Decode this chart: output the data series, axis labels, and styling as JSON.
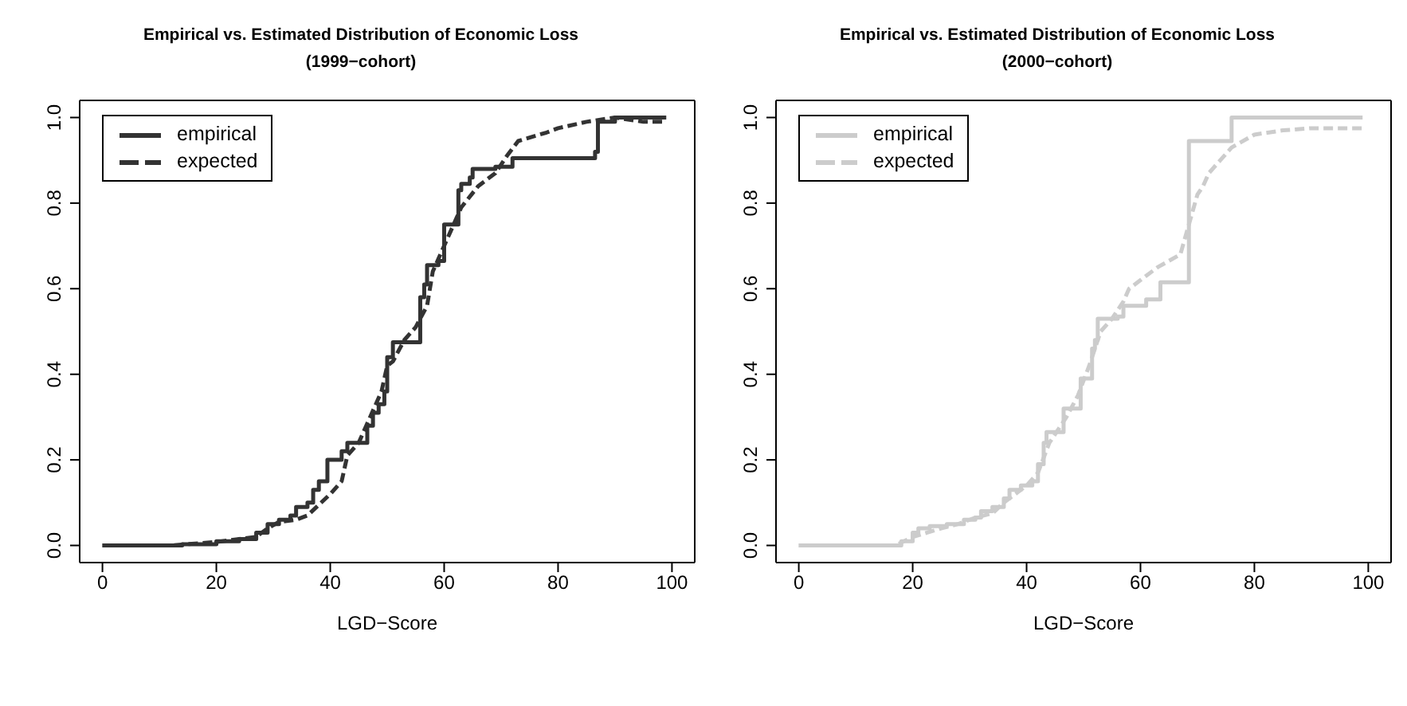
{
  "chart_data": [
    {
      "type": "line",
      "title": "Empirical vs. Estimated Distribution of Economic Loss",
      "subtitle": "(1999−cohort)",
      "xlabel": "LGD−Score",
      "xlim": [
        -4,
        104
      ],
      "ylim": [
        -0.04,
        1.04
      ],
      "xticks": [
        0,
        20,
        40,
        60,
        80,
        100
      ],
      "yticks": [
        {
          "value": 0,
          "label": "0.0"
        },
        {
          "value": 0.2,
          "label": "0.2"
        },
        {
          "value": 0.4,
          "label": "0.4"
        },
        {
          "value": 0.6,
          "label": "0.6"
        },
        {
          "value": 0.8,
          "label": "0.8"
        },
        {
          "value": 1,
          "label": "1.0"
        }
      ],
      "legend": "top left",
      "series": [
        {
          "name": "empirical",
          "color": "#333333",
          "type": "step",
          "line_style": "solid",
          "x": [
            0,
            14,
            20,
            24,
            27,
            29,
            31,
            33,
            34,
            36,
            37,
            38,
            39.5,
            42,
            43,
            46.5,
            47.5,
            48.5,
            49.5,
            50,
            51,
            55.8,
            56.5,
            57,
            59,
            60,
            62.5,
            63,
            64.5,
            65,
            69,
            72,
            86.5,
            87,
            87.5,
            90,
            99
          ],
          "values": [
            0,
            0.003,
            0.01,
            0.015,
            0.03,
            0.05,
            0.06,
            0.07,
            0.09,
            0.1,
            0.13,
            0.15,
            0.2,
            0.22,
            0.24,
            0.28,
            0.31,
            0.33,
            0.36,
            0.44,
            0.475,
            0.58,
            0.61,
            0.655,
            0.665,
            0.75,
            0.83,
            0.845,
            0.86,
            0.88,
            0.885,
            0.905,
            0.92,
            0.99,
            0.99,
            1,
            1
          ]
        },
        {
          "name": "expected",
          "color": "#333333",
          "type": "line",
          "line_style": "dashed",
          "x": [
            0,
            12,
            20,
            27,
            29,
            31,
            34,
            36,
            40,
            42,
            43,
            45,
            47,
            49,
            50,
            51,
            53,
            55,
            57,
            58,
            60,
            62,
            63,
            66,
            69,
            71,
            73,
            78,
            80,
            85,
            90,
            95,
            99
          ],
          "values": [
            0,
            0,
            0.008,
            0.02,
            0.04,
            0.055,
            0.06,
            0.07,
            0.12,
            0.15,
            0.21,
            0.24,
            0.3,
            0.36,
            0.42,
            0.43,
            0.48,
            0.51,
            0.56,
            0.64,
            0.7,
            0.76,
            0.79,
            0.84,
            0.87,
            0.91,
            0.945,
            0.965,
            0.975,
            0.99,
            1,
            0.99,
            0.99
          ]
        }
      ]
    },
    {
      "type": "line",
      "title": "Empirical vs. Estimated Distribution of Economic Loss",
      "subtitle": "(2000−cohort)",
      "xlabel": "LGD−Score",
      "xlim": [
        -4,
        104
      ],
      "ylim": [
        -0.04,
        1.04
      ],
      "xticks": [
        0,
        20,
        40,
        60,
        80,
        100
      ],
      "yticks": [
        {
          "value": 0,
          "label": "0.0"
        },
        {
          "value": 0.2,
          "label": "0.2"
        },
        {
          "value": 0.4,
          "label": "0.4"
        },
        {
          "value": 0.6,
          "label": "0.6"
        },
        {
          "value": 0.8,
          "label": "0.8"
        },
        {
          "value": 1,
          "label": "1.0"
        }
      ],
      "legend": "top left",
      "series": [
        {
          "name": "empirical",
          "color": "#cccccc",
          "type": "step",
          "line_style": "solid",
          "x": [
            0,
            17,
            18,
            20,
            21,
            23,
            26,
            29,
            31,
            32,
            34,
            36,
            37,
            39,
            41,
            42,
            43,
            43.5,
            46.5,
            49.5,
            51.5,
            52,
            52.5,
            56,
            57,
            61,
            63.5,
            68.5,
            76,
            99
          ],
          "values": [
            0,
            0,
            0.01,
            0.03,
            0.04,
            0.045,
            0.05,
            0.06,
            0.065,
            0.08,
            0.09,
            0.11,
            0.13,
            0.14,
            0.15,
            0.19,
            0.24,
            0.265,
            0.32,
            0.39,
            0.46,
            0.48,
            0.53,
            0.535,
            0.56,
            0.575,
            0.615,
            0.945,
            1,
            1
          ]
        },
        {
          "name": "expected",
          "color": "#cccccc",
          "type": "line",
          "line_style": "dashed",
          "x": [
            0,
            17,
            20,
            25,
            28,
            31,
            34,
            36,
            40,
            42,
            44,
            47,
            49,
            51,
            53,
            55,
            57,
            58,
            60,
            63,
            67,
            70,
            71,
            72,
            74,
            76,
            80,
            85,
            90,
            99
          ],
          "values": [
            0,
            0,
            0.02,
            0.04,
            0.05,
            0.065,
            0.075,
            0.1,
            0.14,
            0.17,
            0.24,
            0.3,
            0.35,
            0.42,
            0.5,
            0.53,
            0.57,
            0.6,
            0.62,
            0.65,
            0.68,
            0.82,
            0.84,
            0.87,
            0.9,
            0.93,
            0.96,
            0.97,
            0.975,
            0.975
          ]
        }
      ]
    }
  ]
}
